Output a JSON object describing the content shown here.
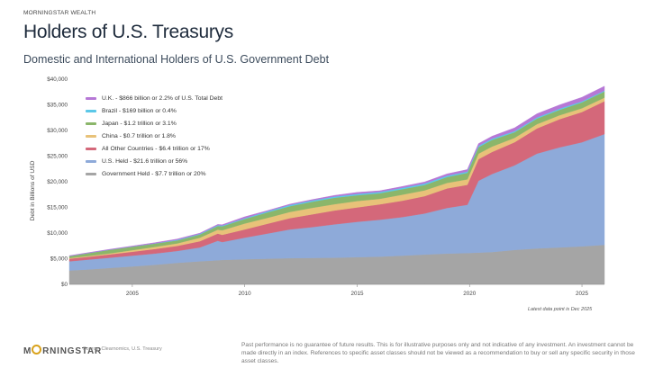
{
  "header": {
    "brand_small": "MORNINGSTAR WEALTH",
    "title": "Holders of U.S. Treasurys",
    "subtitle": "Domestic and International Holders of U.S. Government Debt"
  },
  "note": "Latest data point is Dec 2025",
  "footer": {
    "logo_text": "RNINGSTAR",
    "logo_prefix": "M",
    "source": "Source: Clearnomics, U.S. Treasury",
    "disclaimer": "Past performance is no guarantee of future results. This is for illustrative purposes only and not indicative of any investment. An investment cannot be made directly in an index. References to specific asset classes should not be viewed as a recommendation to buy or sell any specific security in those asset classes."
  },
  "chart_data": {
    "type": "area",
    "stacked": true,
    "ylabel": "Debt in Billions of USD",
    "xlabel": "",
    "ylim": [
      0,
      40000
    ],
    "yticks": [
      "$0",
      "$5,000",
      "$10,000",
      "$15,000",
      "$20,000",
      "$25,000",
      "$30,000",
      "$35,000",
      "$40,000"
    ],
    "ytick_values": [
      0,
      5000,
      10000,
      15000,
      20000,
      25000,
      30000,
      35000,
      40000
    ],
    "xlim": [
      2002.2,
      2026.0
    ],
    "xticks": [
      2005,
      2010,
      2015,
      2020,
      2025
    ],
    "grid": false,
    "legend_position": "top-left",
    "x": [
      2002.2,
      2003,
      2004,
      2005,
      2006,
      2007,
      2008,
      2008.8,
      2009,
      2010,
      2011,
      2012,
      2013,
      2014,
      2015,
      2016,
      2017,
      2018,
      2019,
      2019.9,
      2020.4,
      2021,
      2022,
      2023,
      2024,
      2025,
      2026.0
    ],
    "series": [
      {
        "name": "Government Held - $7.7 trillion or 20%",
        "color": "#a5a5a5",
        "values": [
          2700,
          2900,
          3200,
          3500,
          3800,
          4200,
          4500,
          4700,
          4750,
          4900,
          5000,
          5100,
          5150,
          5200,
          5300,
          5400,
          5600,
          5800,
          6000,
          6100,
          6200,
          6300,
          6700,
          7000,
          7200,
          7400,
          7700
        ]
      },
      {
        "name": "U.S. Held - $21.6 trillion or 56%",
        "color": "#8eaad9",
        "values": [
          1800,
          1900,
          2000,
          2100,
          2200,
          2300,
          2700,
          3800,
          3500,
          4200,
          4900,
          5600,
          6000,
          6500,
          6900,
          7200,
          7500,
          8000,
          8900,
          9400,
          14000,
          15200,
          16500,
          18500,
          19500,
          20300,
          21600
        ]
      },
      {
        "name": "All Other Countries - $6.4 trillion or 17%",
        "color": "#d4687a",
        "values": [
          500,
          550,
          650,
          750,
          900,
          1000,
          1200,
          1400,
          1400,
          1600,
          1900,
          2200,
          2500,
          2700,
          2800,
          3000,
          3200,
          3400,
          3800,
          3900,
          4200,
          4300,
          4500,
          4900,
          5500,
          5900,
          6400
        ]
      },
      {
        "name": "China - $0.7 trillion or 1.8%",
        "color": "#e8c279",
        "values": [
          120,
          150,
          190,
          310,
          400,
          480,
          690,
          750,
          890,
          1160,
          1150,
          1200,
          1270,
          1240,
          1250,
          1060,
          1180,
          1120,
          1070,
          1070,
          1080,
          1060,
          870,
          820,
          760,
          730,
          700
        ]
      },
      {
        "name": "Japan - $1.2 trillion or 3.1%",
        "color": "#8bb66a",
        "values": [
          380,
          550,
          690,
          670,
          640,
          580,
          630,
          720,
          770,
          880,
          1060,
          1120,
          1180,
          1230,
          1120,
          1090,
          1060,
          1040,
          1150,
          1260,
          1270,
          1300,
          1080,
          1100,
          1060,
          1150,
          1200
        ]
      },
      {
        "name": "Brazil - $169 billion or 0.4%",
        "color": "#5bc8e8",
        "values": [
          10,
          15,
          20,
          30,
          50,
          130,
          130,
          160,
          170,
          160,
          210,
          250,
          245,
          255,
          255,
          260,
          270,
          300,
          280,
          260,
          260,
          240,
          220,
          230,
          240,
          200,
          169
        ]
      },
      {
        "name": "U.K. - $866 billion or 2.2% of U.S. Total Debt",
        "color": "#b678d6",
        "values": [
          80,
          90,
          100,
          120,
          140,
          160,
          130,
          150,
          160,
          270,
          150,
          170,
          190,
          230,
          300,
          240,
          260,
          300,
          340,
          390,
          430,
          470,
          640,
          710,
          730,
          800,
          866
        ]
      }
    ]
  }
}
